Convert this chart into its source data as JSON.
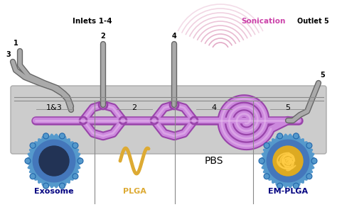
{
  "bg_color": "#ffffff",
  "chip_color": "#cccccc",
  "chip_edge": "#aaaaaa",
  "channel_color": "#cc88dd",
  "channel_light": "#e8c0f0",
  "channel_edge": "#9944aa",
  "inlet_color": "#999999",
  "inlet_edge": "#666666",
  "sonication_color": "#e0a0c0",
  "sonication_label_color": "#cc44aa",
  "label_inlets": "Inlets 1-4",
  "label_sonication": "Sonication",
  "label_outlet": "Outlet 5",
  "labels_section": [
    "1&3",
    "2",
    "4",
    "5"
  ],
  "labels_item": [
    "Exosome",
    "PLGA",
    "PBS",
    "EM-PLGA"
  ],
  "exosome_outer": "#5599cc",
  "exosome_mid": "#4477bb",
  "exosome_inner": "#223355",
  "plga_color": "#ddaa33",
  "em_outer": "#5599cc",
  "em_mid": "#4477bb",
  "em_inner": "#ddaa22",
  "em_fiber": "#ffcc44"
}
